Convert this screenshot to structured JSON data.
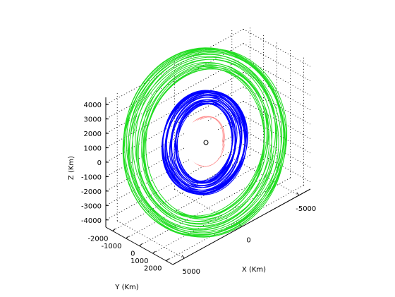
{
  "chart_data": {
    "type": "line",
    "projection": "3d",
    "title": "",
    "xlabel": "X (Km)",
    "ylabel": "Y (Km)",
    "zlabel": "Z (Km)",
    "xlim": [
      -6000,
      6000
    ],
    "ylim": [
      -2500,
      2500
    ],
    "zlim": [
      -4500,
      4500
    ],
    "x_ticks": [
      "-5000",
      "0",
      "5000"
    ],
    "y_ticks": [
      "-2000",
      "-1000",
      "0",
      "1000",
      "2000"
    ],
    "z_ticks": [
      "4000",
      "3000",
      "2000",
      "1000",
      "0",
      "-1000",
      "-2000",
      "-3000",
      "-4000"
    ],
    "grid": true,
    "legend": "none",
    "series": [
      {
        "color": "#22dd22",
        "semi_major_km": 5500,
        "semi_minor_km": 4200,
        "loop_spread_km": 900,
        "turns": 24
      },
      {
        "color": "#0000ff",
        "semi_major_km": 2800,
        "semi_minor_km": 2300,
        "loop_spread_km": 600,
        "turns": 30
      },
      {
        "color": "#ff8888",
        "semi_major_km": 1400,
        "semi_minor_km": 1200,
        "loop_spread_km": 150,
        "turns": 3
      }
    ],
    "center_marker": {
      "x": 0,
      "y": 0,
      "z": 0
    }
  }
}
